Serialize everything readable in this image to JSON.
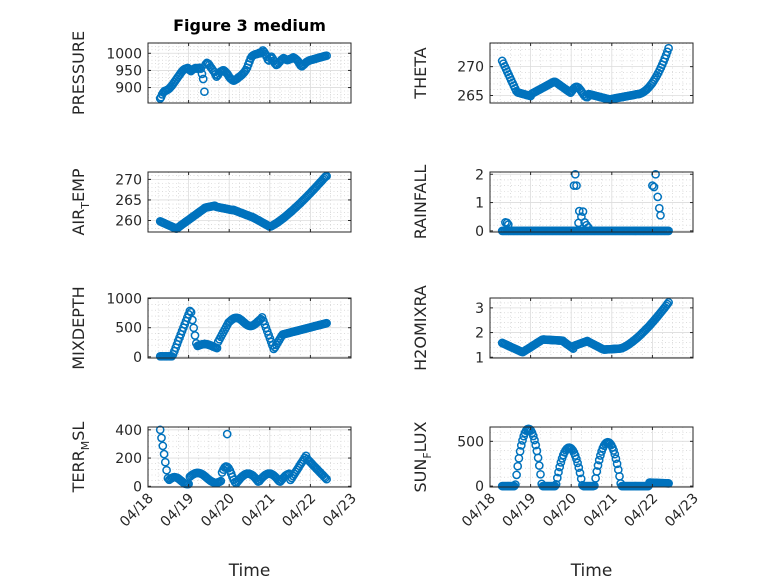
{
  "figure": {
    "title": "Figure 3 medium",
    "marker_color": "#0072BD",
    "x_ticks": [
      "04/18",
      "04/19",
      "04/20",
      "04/21",
      "04/22",
      "04/23"
    ],
    "x_label": "Time"
  },
  "chart_data": [
    {
      "id": "pressure",
      "type": "scatter",
      "title": "Figure 3 medium",
      "ylabel": "PRESSURE",
      "ylabel_sub": "",
      "ylabel_rest": "",
      "ylim": [
        855,
        1030
      ],
      "yticks": [
        900,
        950,
        1000
      ],
      "xlim": [
        0,
        5
      ],
      "show_x_ticks": false,
      "x": [
        0.3,
        0.32,
        0.35,
        0.38,
        0.41,
        0.44,
        0.47,
        0.5,
        0.53,
        0.56,
        0.59,
        0.62,
        0.65,
        0.68,
        0.71,
        0.74,
        0.77,
        0.8,
        0.83,
        0.86,
        0.89,
        0.92,
        0.95,
        0.98,
        1.0,
        1.03,
        1.06,
        1.09,
        1.12,
        1.15,
        1.18,
        1.21,
        1.24,
        1.27,
        1.3,
        1.33,
        1.36,
        1.39,
        1.42,
        1.45,
        1.48,
        1.51,
        1.54,
        1.57,
        1.6,
        1.63,
        1.66,
        1.69,
        1.72,
        1.75,
        1.78,
        1.81,
        1.84,
        1.87,
        1.9,
        1.93,
        1.96,
        1.99,
        2.02,
        2.05,
        2.08,
        2.11,
        2.14,
        2.17,
        2.2,
        2.23,
        2.26,
        2.29,
        2.32,
        2.35,
        2.38,
        2.41,
        2.44,
        2.47,
        2.5,
        2.53,
        2.56,
        2.59,
        2.62,
        2.65,
        2.68,
        2.71,
        2.74,
        2.77,
        2.8,
        2.83,
        2.86,
        2.89,
        2.92,
        2.95,
        2.98,
        3.01,
        3.04,
        3.07,
        3.1,
        3.13,
        3.16,
        3.19,
        3.22,
        3.25,
        3.28,
        3.31,
        3.34,
        3.37,
        3.4,
        3.43,
        3.46,
        3.49,
        3.52,
        3.55,
        3.58,
        3.61,
        3.64,
        3.67,
        3.7,
        3.73,
        3.76,
        3.79,
        3.82,
        3.85,
        3.88,
        3.91,
        3.94,
        3.97,
        4.0,
        4.03,
        4.06,
        4.09,
        4.12,
        4.15,
        4.18,
        4.21,
        4.24,
        4.27,
        4.3,
        4.33,
        4.36,
        4.4
      ],
      "y": [
        868,
        872,
        880,
        886,
        890,
        891,
        893,
        895,
        898,
        902,
        906,
        911,
        916,
        921,
        926,
        931,
        936,
        941,
        946,
        950,
        953,
        955,
        956,
        957,
        955,
        951,
        948,
        952,
        954,
        956,
        957,
        955,
        956,
        958,
        955,
        940,
        925,
        888,
        968,
        972,
        970,
        966,
        960,
        956,
        950,
        946,
        938,
        932,
        936,
        942,
        946,
        948,
        950,
        950,
        947,
        943,
        939,
        933,
        928,
        925,
        922,
        920,
        922,
        924,
        926,
        930,
        932,
        935,
        938,
        942,
        946,
        951,
        958,
        967,
        976,
        985,
        991,
        994,
        996,
        997,
        998,
        999,
        1001,
        1000,
        1003,
        1008,
        1004,
        998,
        990,
        982,
        979,
        986,
        990,
        985,
        978,
        970,
        966,
        968,
        972,
        976,
        980,
        983,
        986,
        984,
        982,
        980,
        981,
        983,
        984,
        986,
        988,
        986,
        983,
        980,
        976,
        970,
        964,
        962,
        965,
        968,
        972,
        975,
        977,
        979,
        980,
        981,
        982,
        983,
        984,
        985,
        986,
        987,
        988,
        989,
        990,
        991,
        992,
        993
      ],
      "x_override": true
    }
  ]
}
